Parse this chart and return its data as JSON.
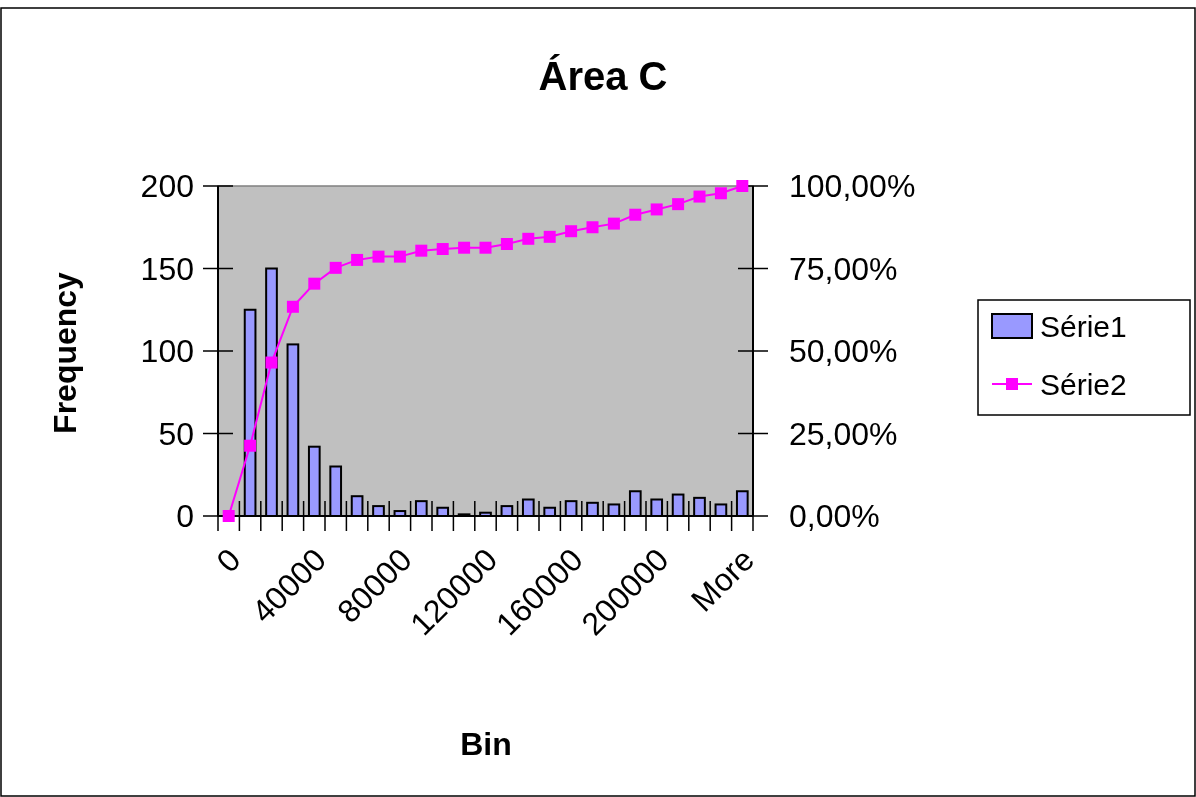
{
  "chart_data": {
    "type": "bar",
    "title": "Área C",
    "xlabel": "Bin",
    "ylabel": "Frequency",
    "categories": [
      "0",
      null,
      null,
      null,
      "40000",
      null,
      null,
      null,
      "80000",
      null,
      null,
      null,
      "120000",
      null,
      null,
      null,
      "160000",
      null,
      null,
      null,
      "200000",
      null,
      null,
      null,
      "More"
    ],
    "series": [
      {
        "name": "Série1",
        "color": "#9999ff",
        "values": [
          0,
          125,
          150,
          104,
          42,
          30,
          12,
          6,
          3,
          9,
          5,
          1,
          2,
          6,
          10,
          5,
          9,
          8,
          7,
          15,
          10,
          13,
          11,
          7,
          15
        ]
      },
      {
        "name": "Série2",
        "type": "line",
        "axis": "y2",
        "color": "#ff00ff",
        "marker": "square",
        "values": [
          0,
          21.3,
          46.5,
          63.4,
          70.4,
          75.2,
          77.6,
          78.6,
          78.6,
          80.4,
          80.9,
          81.3,
          81.3,
          82.4,
          84.0,
          84.6,
          86.3,
          87.5,
          88.6,
          91.3,
          92.9,
          94.5,
          96.8,
          97.8,
          100
        ]
      }
    ],
    "ylim": [
      0,
      200
    ],
    "yticks": [
      0,
      50,
      100,
      150,
      200
    ],
    "y2lim": [
      0,
      100
    ],
    "y2ticks": [
      {
        "value": 0,
        "label": "0,00%"
      },
      {
        "value": 25,
        "label": "25,00%"
      },
      {
        "value": 50,
        "label": "50,00%"
      },
      {
        "value": 75,
        "label": "75,00%"
      },
      {
        "value": 100,
        "label": "100,00%"
      }
    ],
    "grid": false,
    "legend": "right"
  }
}
